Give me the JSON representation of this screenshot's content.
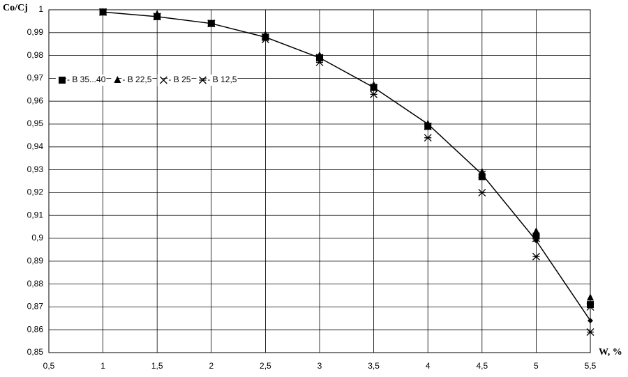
{
  "chart_data": {
    "type": "scatter",
    "y_label": "Co/Cj",
    "x_label": "W, %",
    "x": [
      1,
      1.5,
      2,
      2.5,
      3,
      3.5,
      4,
      4.5,
      5,
      5.5
    ],
    "series": [
      {
        "name": "- B 35...40",
        "marker": "square",
        "color": "#000000",
        "values": [
          0.999,
          0.997,
          0.994,
          0.988,
          0.979,
          0.966,
          0.949,
          0.927,
          0.901,
          0.871
        ]
      },
      {
        "name": "- B 22,5",
        "marker": "triangle",
        "color": "#000000",
        "values": [
          0.999,
          0.998,
          0.994,
          0.989,
          0.98,
          0.967,
          0.95,
          0.929,
          0.903,
          0.874
        ]
      },
      {
        "name": "- B 25",
        "marker": "x",
        "color": "#000000",
        "values": [
          0.999,
          0.997,
          0.994,
          0.988,
          0.979,
          0.966,
          0.949,
          0.928,
          0.9,
          0.87
        ]
      },
      {
        "name": "- B 12,5",
        "marker": "asterisk",
        "color": "#000000",
        "values": [
          0.999,
          0.997,
          0.994,
          0.987,
          0.977,
          0.963,
          0.944,
          0.92,
          0.892,
          0.859
        ]
      },
      {
        "marker": "diamond",
        "style": "line",
        "color": "#000000",
        "values": [
          0.999,
          0.997,
          0.994,
          0.988,
          0.979,
          0.966,
          0.95,
          0.928,
          0.899,
          0.864
        ]
      }
    ],
    "xlim": [
      0.5,
      5.5
    ],
    "xticks": [
      {
        "value": 0.5,
        "label": "0,5"
      },
      1,
      {
        "value": 1.5,
        "label": "1,5"
      },
      2,
      {
        "value": 2.5,
        "label": "2,5"
      },
      3,
      {
        "value": 3.5,
        "label": "3,5"
      },
      4,
      {
        "value": 4.5,
        "label": "4,5"
      },
      5,
      {
        "value": 5.5,
        "label": "5,5"
      }
    ],
    "ylim": [
      0.85,
      1
    ],
    "yticks": [
      {
        "value": 0.85,
        "label": "0,85"
      },
      {
        "value": 0.86,
        "label": "0,86"
      },
      {
        "value": 0.87,
        "label": "0,87"
      },
      {
        "value": 0.88,
        "label": "0,88"
      },
      {
        "value": 0.89,
        "label": "0,89"
      },
      {
        "value": 0.9,
        "label": "0,9"
      },
      {
        "value": 0.91,
        "label": "0,91"
      },
      {
        "value": 0.92,
        "label": "0,92"
      },
      {
        "value": 0.93,
        "label": "0,93"
      },
      {
        "value": 0.94,
        "label": "0,94"
      },
      {
        "value": 0.95,
        "label": "0,95"
      },
      {
        "value": 0.96,
        "label": "0,96"
      },
      {
        "value": 0.97,
        "label": "0,97"
      },
      {
        "value": 0.98,
        "label": "0,98"
      },
      {
        "value": 0.99,
        "label": "0,99"
      },
      1
    ],
    "grid": true,
    "legend": "upper left"
  }
}
